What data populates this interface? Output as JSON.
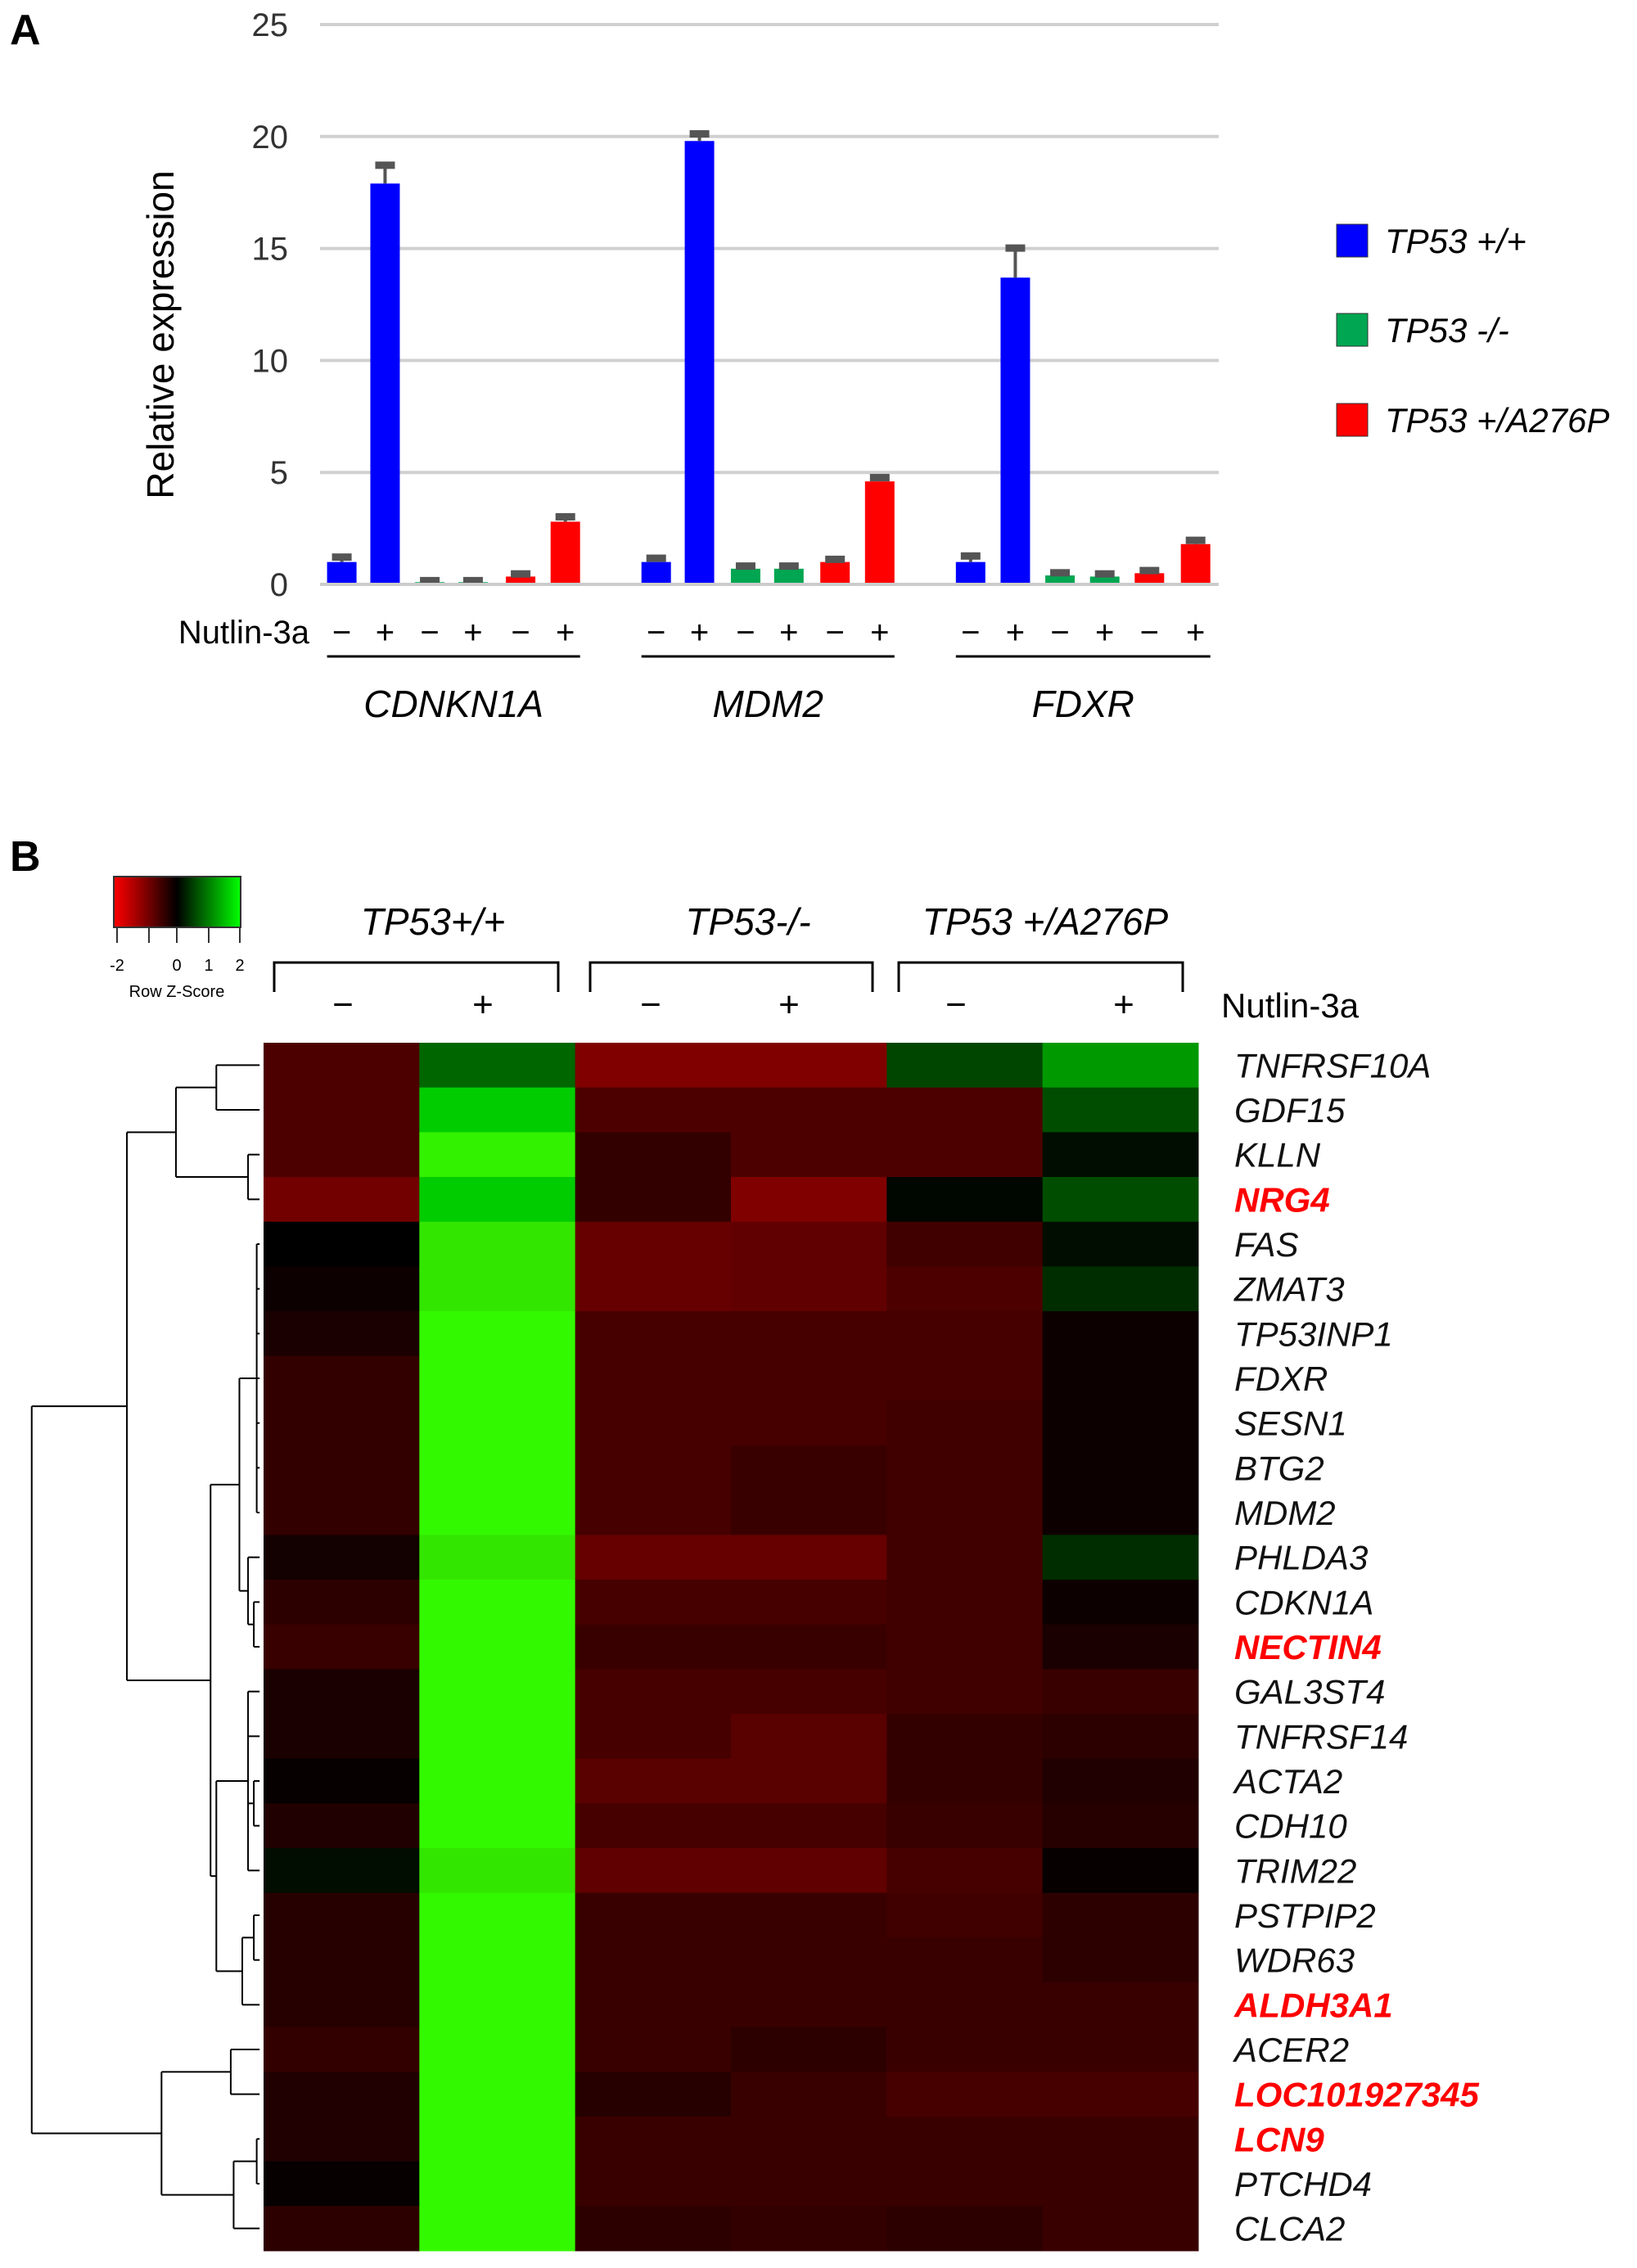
{
  "panel_labels": {
    "a": "A",
    "b": "B"
  },
  "chart_data": [
    {
      "type": "bar",
      "panel": "A",
      "ylabel": "Relative expression",
      "ylim": [
        0,
        25
      ],
      "yticks": [
        "0",
        "5",
        "10",
        "15",
        "20",
        "25"
      ],
      "grid": true,
      "treatment_label": "Nutlin-3a",
      "treatment_signs": [
        "−",
        "+",
        "−",
        "+",
        "−",
        "+"
      ],
      "categories": [
        "CDNKN1A",
        "MDM2",
        "FDXR"
      ],
      "legend_position": "right",
      "series": [
        {
          "name": "TP53 +/+",
          "color": "#0000ff",
          "values": {
            "−": [
              1.0,
              1.0,
              1.0
            ],
            "+": [
              17.9,
              19.8,
              13.7
            ]
          },
          "errors": {
            "−": [
              0.2,
              0.15,
              0.25
            ],
            "+": [
              0.8,
              0.3,
              1.3
            ]
          }
        },
        {
          "name": "TP53 -/-",
          "color": "#00a651",
          "values": {
            "−": [
              0.1,
              0.7,
              0.4
            ],
            "+": [
              0.1,
              0.7,
              0.35
            ]
          },
          "errors": {
            "−": [
              0.05,
              0.1,
              0.1
            ],
            "+": [
              0.05,
              0.1,
              0.1
            ]
          }
        },
        {
          "name": "TP53 +/A276P",
          "color": "#ff0000",
          "values": {
            "−": [
              0.35,
              1.0,
              0.5
            ],
            "+": [
              2.8,
              4.6,
              1.8
            ]
          },
          "errors": {
            "−": [
              0.1,
              0.1,
              0.1
            ],
            "+": [
              0.2,
              0.15,
              0.15
            ]
          }
        }
      ]
    },
    {
      "type": "heatmap",
      "panel": "B",
      "color_key": {
        "title": "Row Z-Score",
        "ticks": [
          "-2",
          "0",
          "1",
          "2"
        ],
        "low_color": "#ff0000",
        "mid_color": "#000000",
        "high_color": "#00ff00",
        "range": [
          -2,
          2
        ]
      },
      "groups": [
        "TP53+/+",
        "TP53-/-",
        "TP53 +/A276P"
      ],
      "treatment_label": "Nutlin-3a",
      "columns": [
        "−",
        "+",
        "−",
        "+",
        "−",
        "+"
      ],
      "rows": [
        {
          "gene": "TNFRSF10A",
          "highlight": false,
          "z": [
            -0.6,
            0.8,
            -1.0,
            -1.0,
            0.55,
            1.2
          ]
        },
        {
          "gene": "GDF15",
          "highlight": false,
          "z": [
            -0.6,
            1.6,
            -0.6,
            -0.6,
            -0.6,
            0.6
          ]
        },
        {
          "gene": "KLLN",
          "highlight": false,
          "z": [
            -0.6,
            1.9,
            -0.4,
            -0.6,
            -0.6,
            0.1
          ]
        },
        {
          "gene": "NRG4",
          "highlight": true,
          "z": [
            -0.9,
            1.6,
            -0.4,
            -1.0,
            0.05,
            0.6
          ]
        },
        {
          "gene": "FAS",
          "highlight": false,
          "z": [
            0.0,
            1.8,
            -0.8,
            -0.75,
            -0.5,
            0.1
          ]
        },
        {
          "gene": "ZMAT3",
          "highlight": false,
          "z": [
            -0.1,
            1.8,
            -0.8,
            -0.75,
            -0.6,
            0.35
          ]
        },
        {
          "gene": "TP53INP1",
          "highlight": false,
          "z": [
            -0.2,
            1.95,
            -0.55,
            -0.55,
            -0.55,
            -0.1
          ]
        },
        {
          "gene": "FDXR",
          "highlight": false,
          "z": [
            -0.4,
            1.95,
            -0.55,
            -0.55,
            -0.55,
            -0.1
          ]
        },
        {
          "gene": "SESN1",
          "highlight": false,
          "z": [
            -0.4,
            1.95,
            -0.55,
            -0.55,
            -0.5,
            -0.1
          ]
        },
        {
          "gene": "BTG2",
          "highlight": false,
          "z": [
            -0.4,
            1.95,
            -0.55,
            -0.45,
            -0.5,
            -0.1
          ]
        },
        {
          "gene": "MDM2",
          "highlight": false,
          "z": [
            -0.4,
            1.95,
            -0.55,
            -0.45,
            -0.5,
            -0.1
          ]
        },
        {
          "gene": "PHLDA3",
          "highlight": false,
          "z": [
            -0.15,
            1.8,
            -0.8,
            -0.8,
            -0.5,
            0.35
          ]
        },
        {
          "gene": "CDKN1A",
          "highlight": false,
          "z": [
            -0.35,
            1.95,
            -0.55,
            -0.55,
            -0.5,
            -0.1
          ]
        },
        {
          "gene": "NECTIN4",
          "highlight": true,
          "z": [
            -0.45,
            1.95,
            -0.45,
            -0.45,
            -0.5,
            -0.2
          ]
        },
        {
          "gene": "GAL3ST4",
          "highlight": false,
          "z": [
            -0.2,
            1.95,
            -0.55,
            -0.55,
            -0.5,
            -0.45
          ]
        },
        {
          "gene": "TNFRSF14",
          "highlight": false,
          "z": [
            -0.2,
            1.95,
            -0.55,
            -0.7,
            -0.4,
            -0.35
          ]
        },
        {
          "gene": "ACTA2",
          "highlight": false,
          "z": [
            -0.05,
            1.95,
            -0.7,
            -0.7,
            -0.4,
            -0.25
          ]
        },
        {
          "gene": "CDH10",
          "highlight": false,
          "z": [
            -0.25,
            1.95,
            -0.55,
            -0.55,
            -0.45,
            -0.3
          ]
        },
        {
          "gene": "TRIM22",
          "highlight": false,
          "z": [
            0.1,
            1.8,
            -0.75,
            -0.75,
            -0.55,
            -0.05
          ]
        },
        {
          "gene": "PSTPIP2",
          "highlight": false,
          "z": [
            -0.3,
            1.95,
            -0.45,
            -0.45,
            -0.5,
            -0.35
          ]
        },
        {
          "gene": "WDR63",
          "highlight": false,
          "z": [
            -0.3,
            1.95,
            -0.45,
            -0.45,
            -0.45,
            -0.35
          ]
        },
        {
          "gene": "ALDH3A1",
          "highlight": true,
          "z": [
            -0.3,
            1.95,
            -0.45,
            -0.45,
            -0.45,
            -0.45
          ]
        },
        {
          "gene": "ACER2",
          "highlight": false,
          "z": [
            -0.4,
            1.95,
            -0.45,
            -0.35,
            -0.45,
            -0.45
          ]
        },
        {
          "gene": "LOC101927345",
          "highlight": true,
          "z": [
            -0.25,
            1.95,
            -0.3,
            -0.45,
            -0.55,
            -0.55
          ]
        },
        {
          "gene": "LCN9",
          "highlight": true,
          "z": [
            -0.25,
            1.95,
            -0.45,
            -0.45,
            -0.45,
            -0.45
          ]
        },
        {
          "gene": "PTCHD4",
          "highlight": false,
          "z": [
            -0.05,
            1.95,
            -0.45,
            -0.45,
            -0.45,
            -0.45
          ]
        },
        {
          "gene": "CLCA2",
          "highlight": false,
          "z": [
            -0.35,
            1.95,
            -0.35,
            -0.4,
            -0.35,
            -0.45
          ]
        }
      ],
      "highlight_color": "#ff0000"
    }
  ]
}
